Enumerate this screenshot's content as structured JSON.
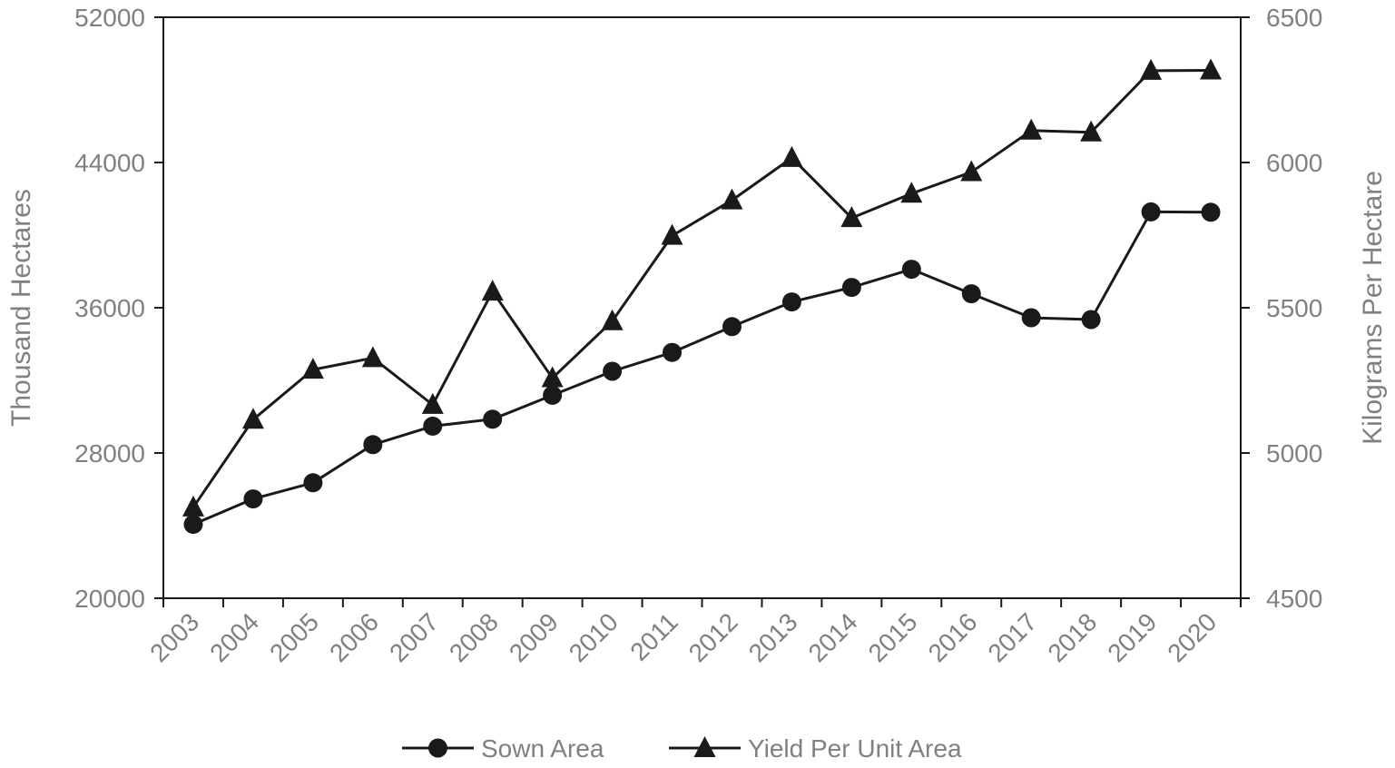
{
  "chart_data": {
    "type": "line",
    "categories": [
      "2003",
      "2004",
      "2005",
      "2006",
      "2007",
      "2008",
      "2009",
      "2010",
      "2011",
      "2012",
      "2013",
      "2014",
      "2015",
      "2016",
      "2017",
      "2018",
      "2019",
      "2020"
    ],
    "ylabel": "Thousand Hectares",
    "y2label": "Kilograms Per Hectare",
    "ylim": [
      20000,
      52000
    ],
    "y2lim": [
      4500,
      6500
    ],
    "yticks": [
      "20000",
      "28000",
      "36000",
      "44000",
      "52000"
    ],
    "y2ticks": [
      "4500",
      "5000",
      "5500",
      "6000",
      "6500"
    ],
    "grid": false,
    "legend_position": "bottom",
    "series": [
      {
        "name": "Sown Area",
        "axis": "left",
        "marker": "circle",
        "values": [
          24070,
          25470,
          26360,
          28460,
          29480,
          29860,
          31180,
          32500,
          33540,
          34960,
          36320,
          37120,
          38120,
          36770,
          35450,
          35350,
          41280,
          41260
        ]
      },
      {
        "name": "Yield Per Unit Area",
        "axis": "right",
        "marker": "triangle",
        "values": [
          4813,
          5115,
          5287,
          5327,
          5166,
          5556,
          5258,
          5454,
          5748,
          5870,
          6016,
          5809,
          5893,
          5967,
          6110,
          6104,
          6316,
          6317
        ]
      }
    ],
    "line_color": "#1a1a1a"
  }
}
